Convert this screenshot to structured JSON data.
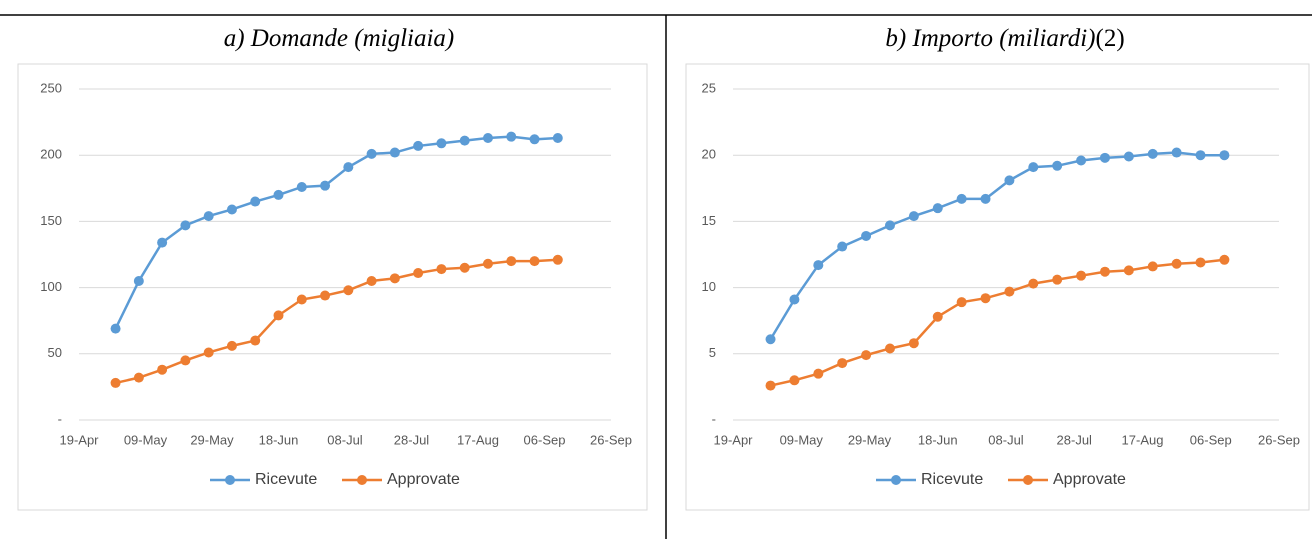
{
  "chart_data": [
    {
      "type": "line",
      "title": "a)  Domande (migliaia)",
      "x": [
        "30-Apr",
        "07-May",
        "14-May",
        "21-May",
        "28-May",
        "04-Jun",
        "11-Jun",
        "18-Jun",
        "25-Jun",
        "02-Jul",
        "09-Jul",
        "16-Jul",
        "23-Jul",
        "30-Jul",
        "06-Aug",
        "13-Aug",
        "20-Aug",
        "27-Aug",
        "03-Sep",
        "10-Sep"
      ],
      "xlim": [
        "19-Apr",
        "26-Sep"
      ],
      "xticks": [
        "19-Apr",
        "09-May",
        "29-May",
        "18-Jun",
        "08-Jul",
        "28-Jul",
        "17-Aug",
        "06-Sep",
        "26-Sep"
      ],
      "ylim": [
        0,
        250
      ],
      "yticks": [
        {
          "value": 0,
          "label": "-"
        },
        50,
        100,
        150,
        200,
        250
      ],
      "grid": true,
      "legend": "bottom",
      "series": [
        {
          "name": "Ricevute",
          "color": "#5b9bd5",
          "values": [
            69,
            105,
            134,
            147,
            154,
            159,
            165,
            170,
            176,
            177,
            191,
            201,
            202,
            207,
            209,
            211,
            213,
            214,
            212,
            213
          ]
        },
        {
          "name": "Approvate",
          "color": "#ed7d31",
          "values": [
            28,
            32,
            38,
            45,
            51,
            56,
            60,
            79,
            91,
            94,
            98,
            105,
            107,
            111,
            114,
            115,
            118,
            120,
            120,
            121
          ]
        }
      ]
    },
    {
      "type": "line",
      "title": "b)  Importo (miliardi)",
      "title_suffix": "(2)",
      "x": [
        "30-Apr",
        "07-May",
        "14-May",
        "21-May",
        "28-May",
        "04-Jun",
        "11-Jun",
        "18-Jun",
        "25-Jun",
        "02-Jul",
        "09-Jul",
        "16-Jul",
        "23-Jul",
        "30-Jul",
        "06-Aug",
        "13-Aug",
        "20-Aug",
        "27-Aug",
        "03-Sep",
        "10-Sep"
      ],
      "xlim": [
        "19-Apr",
        "26-Sep"
      ],
      "xticks": [
        "19-Apr",
        "09-May",
        "29-May",
        "18-Jun",
        "08-Jul",
        "28-Jul",
        "17-Aug",
        "06-Sep",
        "26-Sep"
      ],
      "ylim": [
        0,
        25
      ],
      "yticks": [
        {
          "value": 0,
          "label": "-"
        },
        5,
        10,
        15,
        20,
        25
      ],
      "grid": true,
      "legend": "bottom",
      "series": [
        {
          "name": "Ricevute",
          "color": "#5b9bd5",
          "values": [
            6.1,
            9.1,
            11.7,
            13.1,
            13.9,
            14.7,
            15.4,
            16.0,
            16.7,
            16.7,
            18.1,
            19.1,
            19.2,
            19.6,
            19.8,
            19.9,
            20.1,
            20.2,
            20.0,
            20.0
          ]
        },
        {
          "name": "Approvate",
          "color": "#ed7d31",
          "values": [
            2.6,
            3.0,
            3.5,
            4.3,
            4.9,
            5.4,
            5.8,
            7.8,
            8.9,
            9.2,
            9.7,
            10.3,
            10.6,
            10.9,
            11.2,
            11.3,
            11.6,
            11.8,
            11.9,
            12.1
          ]
        }
      ]
    }
  ]
}
